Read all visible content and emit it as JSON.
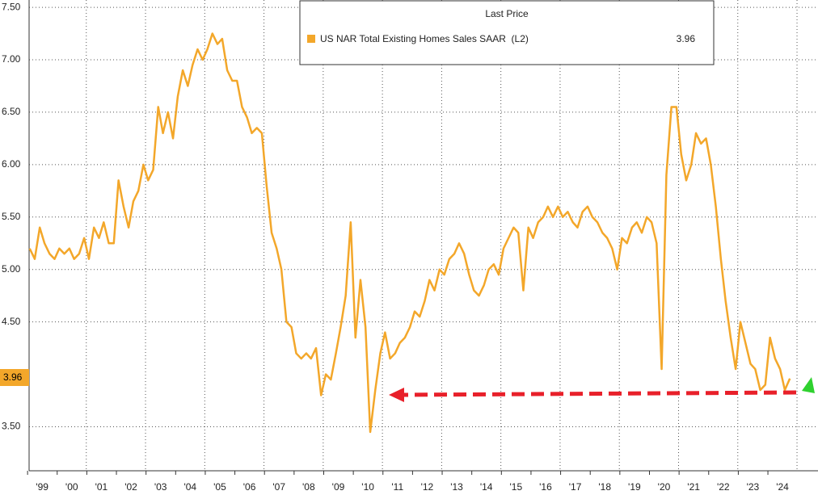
{
  "chart_data": {
    "type": "line",
    "legend_title": "Last Price",
    "series": [
      {
        "name": "US NAR Total Existing Homes Sales SAAR  (L2)",
        "color": "#f3a72a",
        "values": [
          5.2,
          5.1,
          5.4,
          5.25,
          5.15,
          5.1,
          5.2,
          5.15,
          5.2,
          5.1,
          5.15,
          5.3,
          5.1,
          5.4,
          5.3,
          5.45,
          5.25,
          5.25,
          5.85,
          5.6,
          5.4,
          5.65,
          5.75,
          6.0,
          5.85,
          5.95,
          6.55,
          6.3,
          6.5,
          6.25,
          6.65,
          6.9,
          6.75,
          6.95,
          7.1,
          7.0,
          7.1,
          7.25,
          7.15,
          7.2,
          6.9,
          6.8,
          6.8,
          6.55,
          6.45,
          6.3,
          6.35,
          6.3,
          5.8,
          5.35,
          5.2,
          5.0,
          4.5,
          4.45,
          4.2,
          4.15,
          4.2,
          4.15,
          4.25,
          3.8,
          4.0,
          3.95,
          4.2,
          4.45,
          4.75,
          5.45,
          4.35,
          4.9,
          4.45,
          3.45,
          3.85,
          4.2,
          4.4,
          4.15,
          4.2,
          4.3,
          4.35,
          4.45,
          4.6,
          4.55,
          4.7,
          4.9,
          4.8,
          5.0,
          4.95,
          5.1,
          5.15,
          5.25,
          5.15,
          4.95,
          4.8,
          4.75,
          4.85,
          5.0,
          5.05,
          4.95,
          5.2,
          5.3,
          5.4,
          5.35,
          4.8,
          5.4,
          5.3,
          5.45,
          5.5,
          5.6,
          5.5,
          5.6,
          5.5,
          5.55,
          5.45,
          5.4,
          5.55,
          5.6,
          5.5,
          5.45,
          5.35,
          5.3,
          5.2,
          5.0,
          5.3,
          5.25,
          5.4,
          5.45,
          5.35,
          5.5,
          5.45,
          5.25,
          4.05,
          5.9,
          6.55,
          6.55,
          6.1,
          5.85,
          6.0,
          6.3,
          6.2,
          6.25,
          6.0,
          5.6,
          5.1,
          4.7,
          4.35,
          4.05,
          4.5,
          4.3,
          4.1,
          4.05,
          3.85,
          3.9,
          4.35,
          4.15,
          4.05,
          3.85,
          3.96
        ]
      }
    ],
    "x": [
      1999.08,
      1999.25,
      1999.42,
      1999.58,
      1999.75,
      1999.92,
      2000.08,
      2000.25,
      2000.42,
      2000.58,
      2000.75,
      2000.92,
      2001.08,
      2001.25,
      2001.42,
      2001.58,
      2001.75,
      2001.92,
      2002.08,
      2002.25,
      2002.42,
      2002.58,
      2002.75,
      2002.92,
      2003.08,
      2003.25,
      2003.42,
      2003.58,
      2003.75,
      2003.92,
      2004.08,
      2004.25,
      2004.42,
      2004.58,
      2004.75,
      2004.92,
      2005.08,
      2005.25,
      2005.42,
      2005.58,
      2005.75,
      2005.92,
      2006.08,
      2006.25,
      2006.42,
      2006.58,
      2006.75,
      2006.92,
      2007.08,
      2007.25,
      2007.42,
      2007.58,
      2007.75,
      2007.92,
      2008.08,
      2008.25,
      2008.42,
      2008.58,
      2008.75,
      2008.92,
      2009.08,
      2009.25,
      2009.42,
      2009.58,
      2009.75,
      2009.92,
      2010.08,
      2010.25,
      2010.42,
      2010.58,
      2010.75,
      2010.92,
      2011.08,
      2011.25,
      2011.42,
      2011.58,
      2011.75,
      2011.92,
      2012.08,
      2012.25,
      2012.42,
      2012.58,
      2012.75,
      2012.92,
      2013.08,
      2013.25,
      2013.42,
      2013.58,
      2013.75,
      2013.92,
      2014.08,
      2014.25,
      2014.42,
      2014.58,
      2014.75,
      2014.92,
      2015.08,
      2015.25,
      2015.42,
      2015.58,
      2015.75,
      2015.92,
      2016.08,
      2016.25,
      2016.42,
      2016.58,
      2016.75,
      2016.92,
      2017.08,
      2017.25,
      2017.42,
      2017.58,
      2017.75,
      2017.92,
      2018.08,
      2018.25,
      2018.42,
      2018.58,
      2018.75,
      2018.92,
      2019.08,
      2019.25,
      2019.42,
      2019.58,
      2019.75,
      2019.92,
      2020.08,
      2020.25,
      2020.42,
      2020.58,
      2020.75,
      2020.92,
      2021.08,
      2021.25,
      2021.42,
      2021.58,
      2021.75,
      2021.92,
      2022.08,
      2022.25,
      2022.42,
      2022.58,
      2022.75,
      2022.92,
      2023.08,
      2023.25,
      2023.42,
      2023.58,
      2023.75,
      2023.92,
      2024.08,
      2024.25,
      2024.42,
      2024.58,
      2024.75
    ],
    "xlim": [
      1999.06,
      2025.7
    ],
    "xticks": [
      {
        "value": 1999.5,
        "label": "'99"
      },
      {
        "value": 2000.5,
        "label": "'00"
      },
      {
        "value": 2001.5,
        "label": "'01"
      },
      {
        "value": 2002.5,
        "label": "'02"
      },
      {
        "value": 2003.5,
        "label": "'03"
      },
      {
        "value": 2004.5,
        "label": "'04"
      },
      {
        "value": 2005.5,
        "label": "'05"
      },
      {
        "value": 2006.5,
        "label": "'06"
      },
      {
        "value": 2007.5,
        "label": "'07"
      },
      {
        "value": 2008.5,
        "label": "'08"
      },
      {
        "value": 2009.5,
        "label": "'09"
      },
      {
        "value": 2010.5,
        "label": "'10"
      },
      {
        "value": 2011.5,
        "label": "'11"
      },
      {
        "value": 2012.5,
        "label": "'12"
      },
      {
        "value": 2013.5,
        "label": "'13"
      },
      {
        "value": 2014.5,
        "label": "'14"
      },
      {
        "value": 2015.5,
        "label": "'15"
      },
      {
        "value": 2016.5,
        "label": "'16"
      },
      {
        "value": 2017.5,
        "label": "'17"
      },
      {
        "value": 2018.5,
        "label": "'18"
      },
      {
        "value": 2019.5,
        "label": "'19"
      },
      {
        "value": 2020.5,
        "label": "'20"
      },
      {
        "value": 2021.5,
        "label": "'21"
      },
      {
        "value": 2022.5,
        "label": "'22"
      },
      {
        "value": 2023.5,
        "label": "'23"
      },
      {
        "value": 2024.5,
        "label": "'24"
      }
    ],
    "ylim": [
      3.08,
      7.57
    ],
    "yticks": [
      {
        "value": 3.5,
        "label": "3.50"
      },
      {
        "value": 4.5,
        "label": "4.50"
      },
      {
        "value": 5.0,
        "label": "5.00"
      },
      {
        "value": 5.5,
        "label": "5.50"
      },
      {
        "value": 6.0,
        "label": "6.00"
      },
      {
        "value": 6.5,
        "label": "6.50"
      },
      {
        "value": 7.0,
        "label": "7.00"
      },
      {
        "value": 7.5,
        "label": "7.50"
      }
    ],
    "grid": true
  }
}
